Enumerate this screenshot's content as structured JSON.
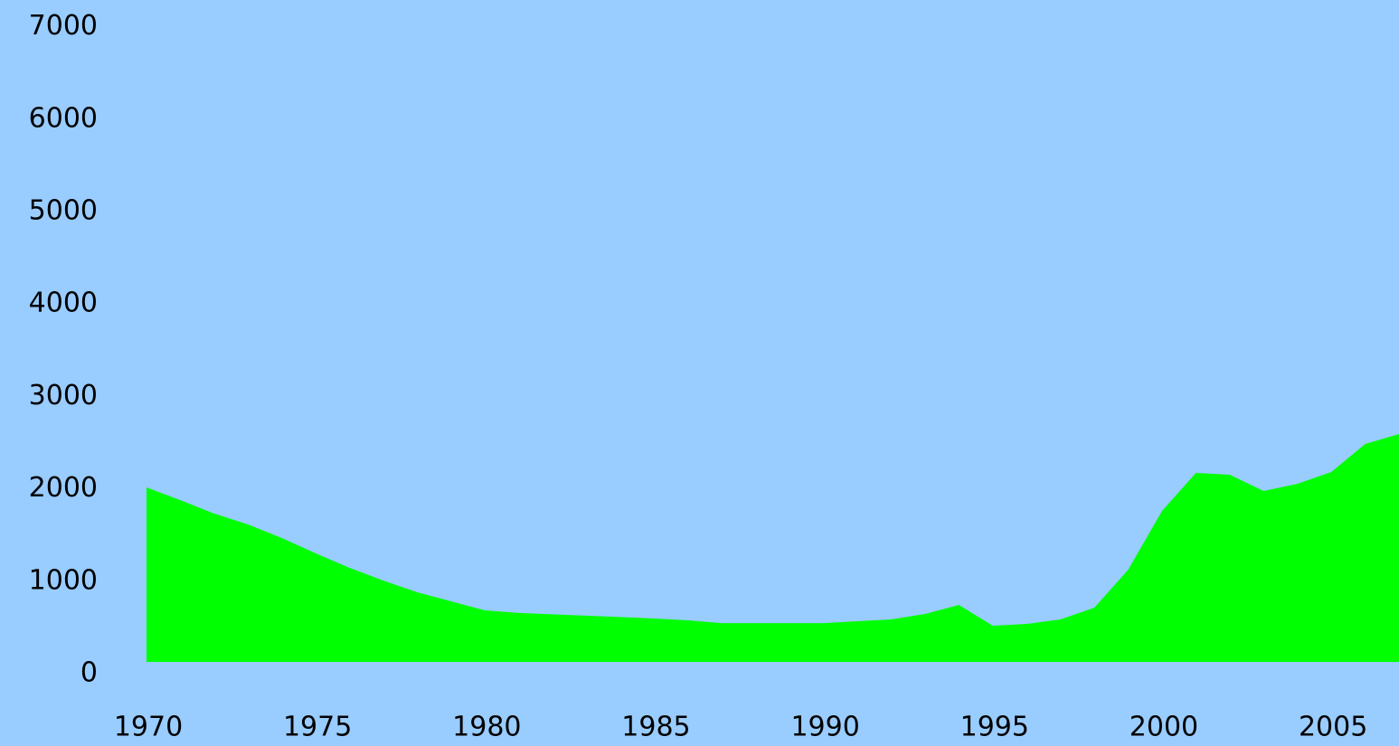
{
  "chart_data": {
    "type": "area",
    "x": [
      1970,
      1971,
      1972,
      1973,
      1974,
      1975,
      1976,
      1977,
      1978,
      1979,
      1980,
      1981,
      1982,
      1983,
      1984,
      1985,
      1986,
      1987,
      1988,
      1989,
      1990,
      1991,
      1992,
      1993,
      1994,
      1995,
      1996,
      1997,
      1998,
      1999,
      2000,
      2001,
      2002,
      2003,
      2004,
      2005,
      2006,
      2007
    ],
    "values": [
      1888,
      1750,
      1605,
      1487,
      1340,
      1174,
      1018,
      880,
      753,
      655,
      558,
      530,
      515,
      500,
      485,
      470,
      450,
      420,
      420,
      420,
      420,
      440,
      460,
      519,
      616,
      391,
      411,
      460,
      587,
      998,
      1634,
      2045,
      2025,
      1849,
      1928,
      2055,
      2358,
      2466
    ],
    "color": "#00ff00",
    "xlim": [
      1970,
      2007
    ],
    "xticks": [
      1970,
      1975,
      1980,
      1985,
      1990,
      1995,
      2000,
      2005
    ],
    "ylim": [
      0,
      7000
    ],
    "yticks": [
      0,
      1000,
      2000,
      3000,
      4000,
      5000,
      6000,
      7000
    ],
    "grid": false
  }
}
